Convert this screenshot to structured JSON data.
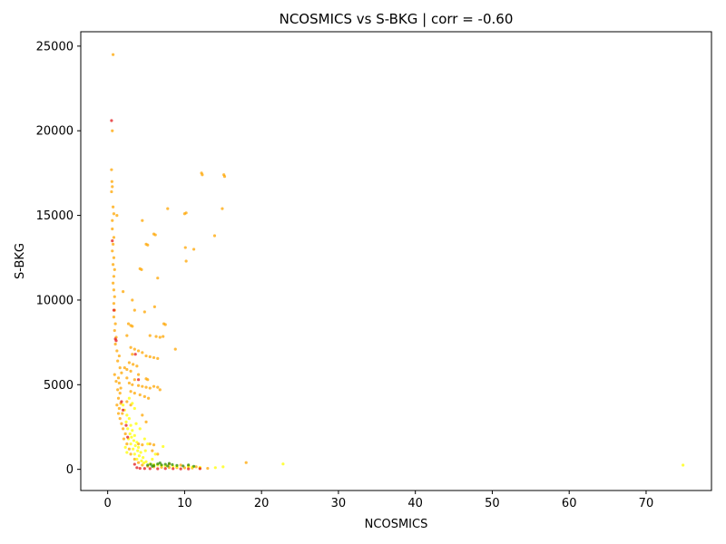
{
  "chart_data": {
    "type": "scatter",
    "title": "NCOSMICS vs S-BKG | corr = -0.60",
    "xlabel": "NCOSMICS",
    "ylabel": "S-BKG",
    "xlim": [
      -3.5,
      78.5
    ],
    "ylim": [
      -1250,
      25850
    ],
    "xticks": [
      0,
      10,
      20,
      30,
      40,
      50,
      60,
      70
    ],
    "yticks": [
      0,
      5000,
      10000,
      15000,
      20000,
      25000
    ],
    "grid": false,
    "legend": "none",
    "colors": {
      "orange": "#FFA500",
      "yellow": "#FFFF00",
      "red": "#E31A1C",
      "green": "#2E8B00"
    },
    "series": [
      {
        "color_key": "orange",
        "points": [
          [
            0.7,
            24500
          ],
          [
            0.6,
            20000
          ],
          [
            0.5,
            17700
          ],
          [
            0.55,
            17000
          ],
          [
            0.6,
            16700
          ],
          [
            0.5,
            16400
          ],
          [
            0.7,
            15500
          ],
          [
            0.8,
            15100
          ],
          [
            1.2,
            15000
          ],
          [
            0.6,
            14700
          ],
          [
            0.6,
            14200
          ],
          [
            0.8,
            13700
          ],
          [
            0.7,
            13300
          ],
          [
            0.6,
            12900
          ],
          [
            0.8,
            12500
          ],
          [
            0.7,
            12100
          ],
          [
            0.9,
            11800
          ],
          [
            0.8,
            11400
          ],
          [
            0.7,
            11000
          ],
          [
            0.8,
            10600
          ],
          [
            0.9,
            10200
          ],
          [
            0.8,
            9800
          ],
          [
            0.9,
            9400
          ],
          [
            0.8,
            9000
          ],
          [
            1.0,
            8600
          ],
          [
            0.9,
            8200
          ],
          [
            1.1,
            7800
          ],
          [
            1.0,
            7400
          ],
          [
            1.2,
            7000
          ],
          [
            1.5,
            6700
          ],
          [
            1.3,
            6400
          ],
          [
            1.6,
            6000
          ],
          [
            1.8,
            5700
          ],
          [
            1.4,
            5400
          ],
          [
            1.5,
            5100
          ],
          [
            1.7,
            4800
          ],
          [
            1.6,
            4500
          ],
          [
            1.4,
            4200
          ],
          [
            1.7,
            3900
          ],
          [
            1.5,
            3600
          ],
          [
            1.9,
            3300
          ],
          [
            1.6,
            3000
          ],
          [
            1.8,
            2700
          ],
          [
            2.0,
            2400
          ],
          [
            2.3,
            2100
          ],
          [
            2.1,
            1800
          ],
          [
            2.5,
            1500
          ],
          [
            2.8,
            1200
          ],
          [
            3.0,
            900
          ],
          [
            3.5,
            600
          ],
          [
            4.0,
            400
          ],
          [
            4.5,
            250
          ],
          [
            5.2,
            180
          ],
          [
            6.0,
            150
          ],
          [
            7.0,
            120
          ],
          [
            8.0,
            110
          ],
          [
            9.0,
            100
          ],
          [
            10.0,
            90
          ],
          [
            11.0,
            80
          ],
          [
            12.0,
            70
          ],
          [
            13.0,
            60
          ],
          [
            12.2,
            17500
          ],
          [
            12.3,
            17400
          ],
          [
            15.1,
            17400
          ],
          [
            15.2,
            17300
          ],
          [
            7.8,
            15400
          ],
          [
            14.9,
            15400
          ],
          [
            10.0,
            15100
          ],
          [
            10.2,
            15150
          ],
          [
            4.5,
            14700
          ],
          [
            6.0,
            13900
          ],
          [
            6.2,
            13850
          ],
          [
            5.0,
            13300
          ],
          [
            5.2,
            13250
          ],
          [
            10.1,
            13100
          ],
          [
            11.2,
            13000
          ],
          [
            13.9,
            13800
          ],
          [
            10.2,
            12300
          ],
          [
            4.2,
            11850
          ],
          [
            4.4,
            11800
          ],
          [
            6.5,
            11300
          ],
          [
            2.0,
            10500
          ],
          [
            3.2,
            10000
          ],
          [
            3.5,
            9400
          ],
          [
            6.1,
            9600
          ],
          [
            4.8,
            9300
          ],
          [
            2.7,
            8600
          ],
          [
            3.0,
            8500
          ],
          [
            7.3,
            8600
          ],
          [
            7.5,
            8550
          ],
          [
            3.2,
            8450
          ],
          [
            2.5,
            7900
          ],
          [
            5.5,
            7900
          ],
          [
            6.3,
            7850
          ],
          [
            6.8,
            7800
          ],
          [
            7.2,
            7850
          ],
          [
            8.8,
            7100
          ],
          [
            3.0,
            7200
          ],
          [
            3.5,
            7100
          ],
          [
            4.0,
            7000
          ],
          [
            4.5,
            6900
          ],
          [
            3.2,
            6800
          ],
          [
            5.0,
            6700
          ],
          [
            5.5,
            6650
          ],
          [
            6.0,
            6600
          ],
          [
            6.5,
            6550
          ],
          [
            2.8,
            6300
          ],
          [
            3.3,
            6200
          ],
          [
            3.8,
            6100
          ],
          [
            2.2,
            6000
          ],
          [
            2.5,
            5900
          ],
          [
            3.0,
            5800
          ],
          [
            4.0,
            5600
          ],
          [
            2.5,
            5400
          ],
          [
            3.5,
            5300
          ],
          [
            5.0,
            5350
          ],
          [
            5.2,
            5300
          ],
          [
            2.8,
            5100
          ],
          [
            3.2,
            5000
          ],
          [
            4.0,
            4950
          ],
          [
            4.5,
            4900
          ],
          [
            5.0,
            4850
          ],
          [
            5.5,
            4800
          ],
          [
            6.0,
            4900
          ],
          [
            6.5,
            4850
          ],
          [
            6.8,
            4700
          ],
          [
            3.0,
            4600
          ],
          [
            3.5,
            4500
          ],
          [
            4.2,
            4400
          ],
          [
            4.8,
            4300
          ],
          [
            5.3,
            4200
          ],
          [
            2.5,
            4000
          ],
          [
            3.0,
            3800
          ],
          [
            4.5,
            3200
          ],
          [
            5.0,
            2800
          ],
          [
            4.0,
            1500
          ],
          [
            4.5,
            1450
          ],
          [
            5.5,
            1500
          ],
          [
            6.0,
            1450
          ],
          [
            5.8,
            1100
          ],
          [
            6.5,
            900
          ],
          [
            8.0,
            300
          ],
          [
            9.5,
            250
          ],
          [
            10.5,
            200
          ],
          [
            11.5,
            150
          ],
          [
            18.0,
            400
          ],
          [
            0.9,
            5600
          ],
          [
            1.1,
            5200
          ],
          [
            1.3,
            4700
          ],
          [
            1.2,
            3800
          ],
          [
            1.4,
            3300
          ]
        ]
      },
      {
        "color_key": "yellow",
        "points": [
          [
            2.0,
            3800
          ],
          [
            2.2,
            3500
          ],
          [
            2.5,
            3200
          ],
          [
            2.8,
            3000
          ],
          [
            2.4,
            2800
          ],
          [
            3.0,
            2600
          ],
          [
            2.6,
            2400
          ],
          [
            3.2,
            2300
          ],
          [
            2.9,
            2100
          ],
          [
            3.5,
            2000
          ],
          [
            3.1,
            1900
          ],
          [
            2.7,
            1800
          ],
          [
            3.4,
            1700
          ],
          [
            3.8,
            1600
          ],
          [
            3.0,
            1500
          ],
          [
            3.6,
            1400
          ],
          [
            4.0,
            1300
          ],
          [
            3.3,
            1200
          ],
          [
            3.9,
            1100
          ],
          [
            4.3,
            1000
          ],
          [
            3.5,
            900
          ],
          [
            4.1,
            800
          ],
          [
            4.6,
            700
          ],
          [
            3.8,
            600
          ],
          [
            4.4,
            500
          ],
          [
            5.0,
            450
          ],
          [
            4.7,
            380
          ],
          [
            5.5,
            320
          ],
          [
            6.0,
            280
          ],
          [
            6.5,
            250
          ],
          [
            7.0,
            230
          ],
          [
            7.5,
            200
          ],
          [
            8.5,
            180
          ],
          [
            9.0,
            160
          ],
          [
            10.5,
            150
          ],
          [
            11.0,
            140
          ],
          [
            12.0,
            120
          ],
          [
            14.0,
            100
          ],
          [
            15.0,
            150
          ],
          [
            22.8,
            320
          ],
          [
            74.8,
            250
          ],
          [
            3.7,
            2700
          ],
          [
            4.2,
            2400
          ],
          [
            4.8,
            1800
          ],
          [
            5.2,
            1500
          ],
          [
            2.3,
            1300
          ],
          [
            2.5,
            1000
          ],
          [
            4.9,
            1100
          ],
          [
            6.2,
            900
          ],
          [
            7.2,
            1350
          ],
          [
            5.8,
            600
          ],
          [
            2.8,
            4200
          ],
          [
            3.2,
            3900
          ],
          [
            3.5,
            3600
          ]
        ]
      },
      {
        "color_key": "red",
        "points": [
          [
            0.5,
            20600
          ],
          [
            0.6,
            13500
          ],
          [
            0.8,
            9400
          ],
          [
            1.0,
            7700
          ],
          [
            1.1,
            7600
          ],
          [
            3.6,
            6800
          ],
          [
            1.8,
            4000
          ],
          [
            2.0,
            3500
          ],
          [
            2.4,
            2600
          ],
          [
            2.6,
            1900
          ],
          [
            3.5,
            300
          ],
          [
            3.8,
            100
          ],
          [
            4.2,
            60
          ],
          [
            4.8,
            50
          ],
          [
            5.5,
            40
          ],
          [
            6.5,
            35
          ],
          [
            7.5,
            50
          ],
          [
            8.5,
            40
          ],
          [
            9.5,
            30
          ],
          [
            10.5,
            30
          ],
          [
            12.0,
            40
          ],
          [
            4.0,
            5300
          ]
        ]
      },
      {
        "color_key": "green",
        "points": [
          [
            5.2,
            250
          ],
          [
            5.6,
            300
          ],
          [
            6.0,
            220
          ],
          [
            6.5,
            320
          ],
          [
            7.0,
            260
          ],
          [
            7.5,
            300
          ],
          [
            8.0,
            350
          ],
          [
            8.4,
            280
          ],
          [
            9.0,
            230
          ],
          [
            9.8,
            200
          ],
          [
            10.5,
            260
          ],
          [
            11.2,
            180
          ],
          [
            6.8,
            380
          ],
          [
            7.8,
            200
          ],
          [
            5.8,
            180
          ]
        ]
      }
    ]
  }
}
